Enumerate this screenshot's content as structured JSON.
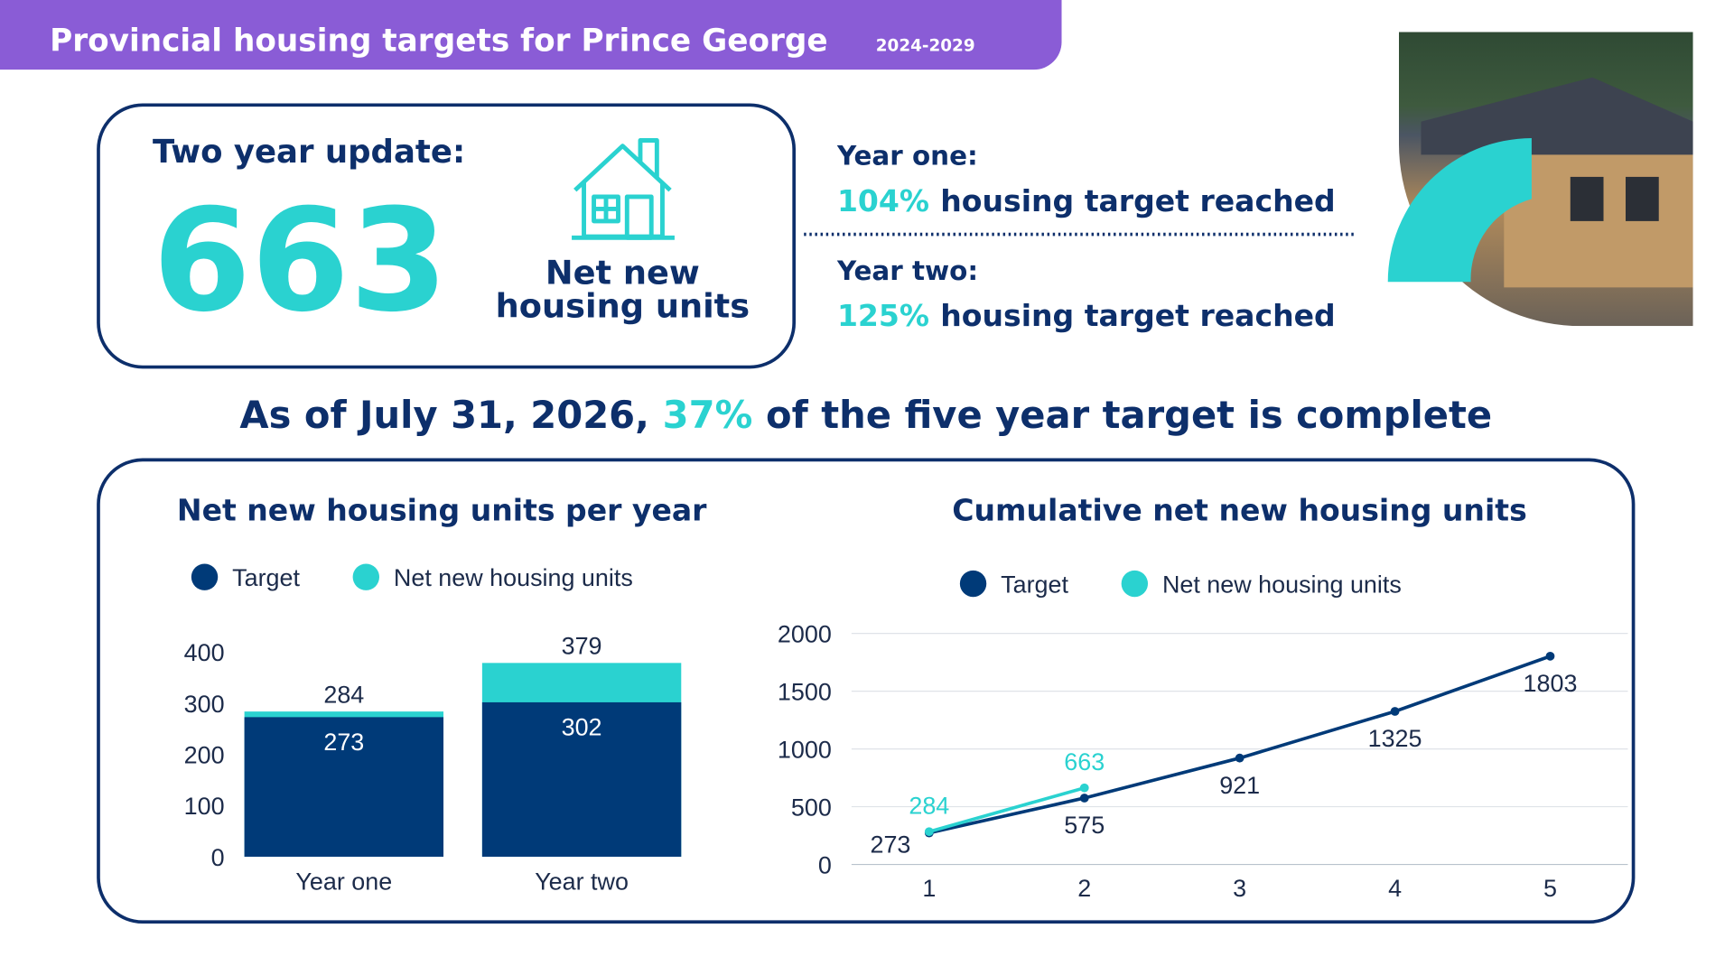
{
  "header": {
    "title": "Provincial housing targets for Prince George",
    "subtitle": "2024-2029"
  },
  "update": {
    "heading": "Two year update:",
    "number": "663",
    "label_line1": "Net new",
    "label_line2": "housing units"
  },
  "years": [
    {
      "heading": "Year one:",
      "percent": "104%",
      "text": "housing target reached"
    },
    {
      "heading": "Year two:",
      "percent": "125%",
      "text": "housing target reached"
    }
  ],
  "summary": {
    "before": "As of July 31, 2026,",
    "highlight": "37%",
    "after": "of the five year target is complete"
  },
  "chart_data": [
    {
      "type": "bar",
      "title": "Net new housing units per year",
      "categories": [
        "Year one",
        "Year two"
      ],
      "series": [
        {
          "name": "Target",
          "color": "#003a78",
          "values": [
            273,
            302
          ]
        },
        {
          "name": "Net new housing units",
          "color": "#2ad2d0",
          "values": [
            284,
            379
          ]
        }
      ],
      "ylim": [
        0,
        400
      ],
      "yticks": [
        0,
        100,
        200,
        300,
        400
      ],
      "grid": false
    },
    {
      "type": "line",
      "title": "Cumulative net new housing units",
      "x": [
        1,
        2,
        3,
        4,
        5
      ],
      "series": [
        {
          "name": "Target",
          "color": "#003a78",
          "values": [
            273,
            575,
            921,
            1325,
            1803
          ]
        },
        {
          "name": "Net new housing units",
          "color": "#2ad2d0",
          "values": [
            284,
            663,
            null,
            null,
            null
          ]
        }
      ],
      "xlim": [
        0.5,
        5.5
      ],
      "xticks": [
        1,
        2,
        3,
        4,
        5
      ],
      "ylim": [
        0,
        2000
      ],
      "yticks": [
        0,
        500,
        1000,
        1500,
        2000
      ],
      "grid": true
    }
  ]
}
